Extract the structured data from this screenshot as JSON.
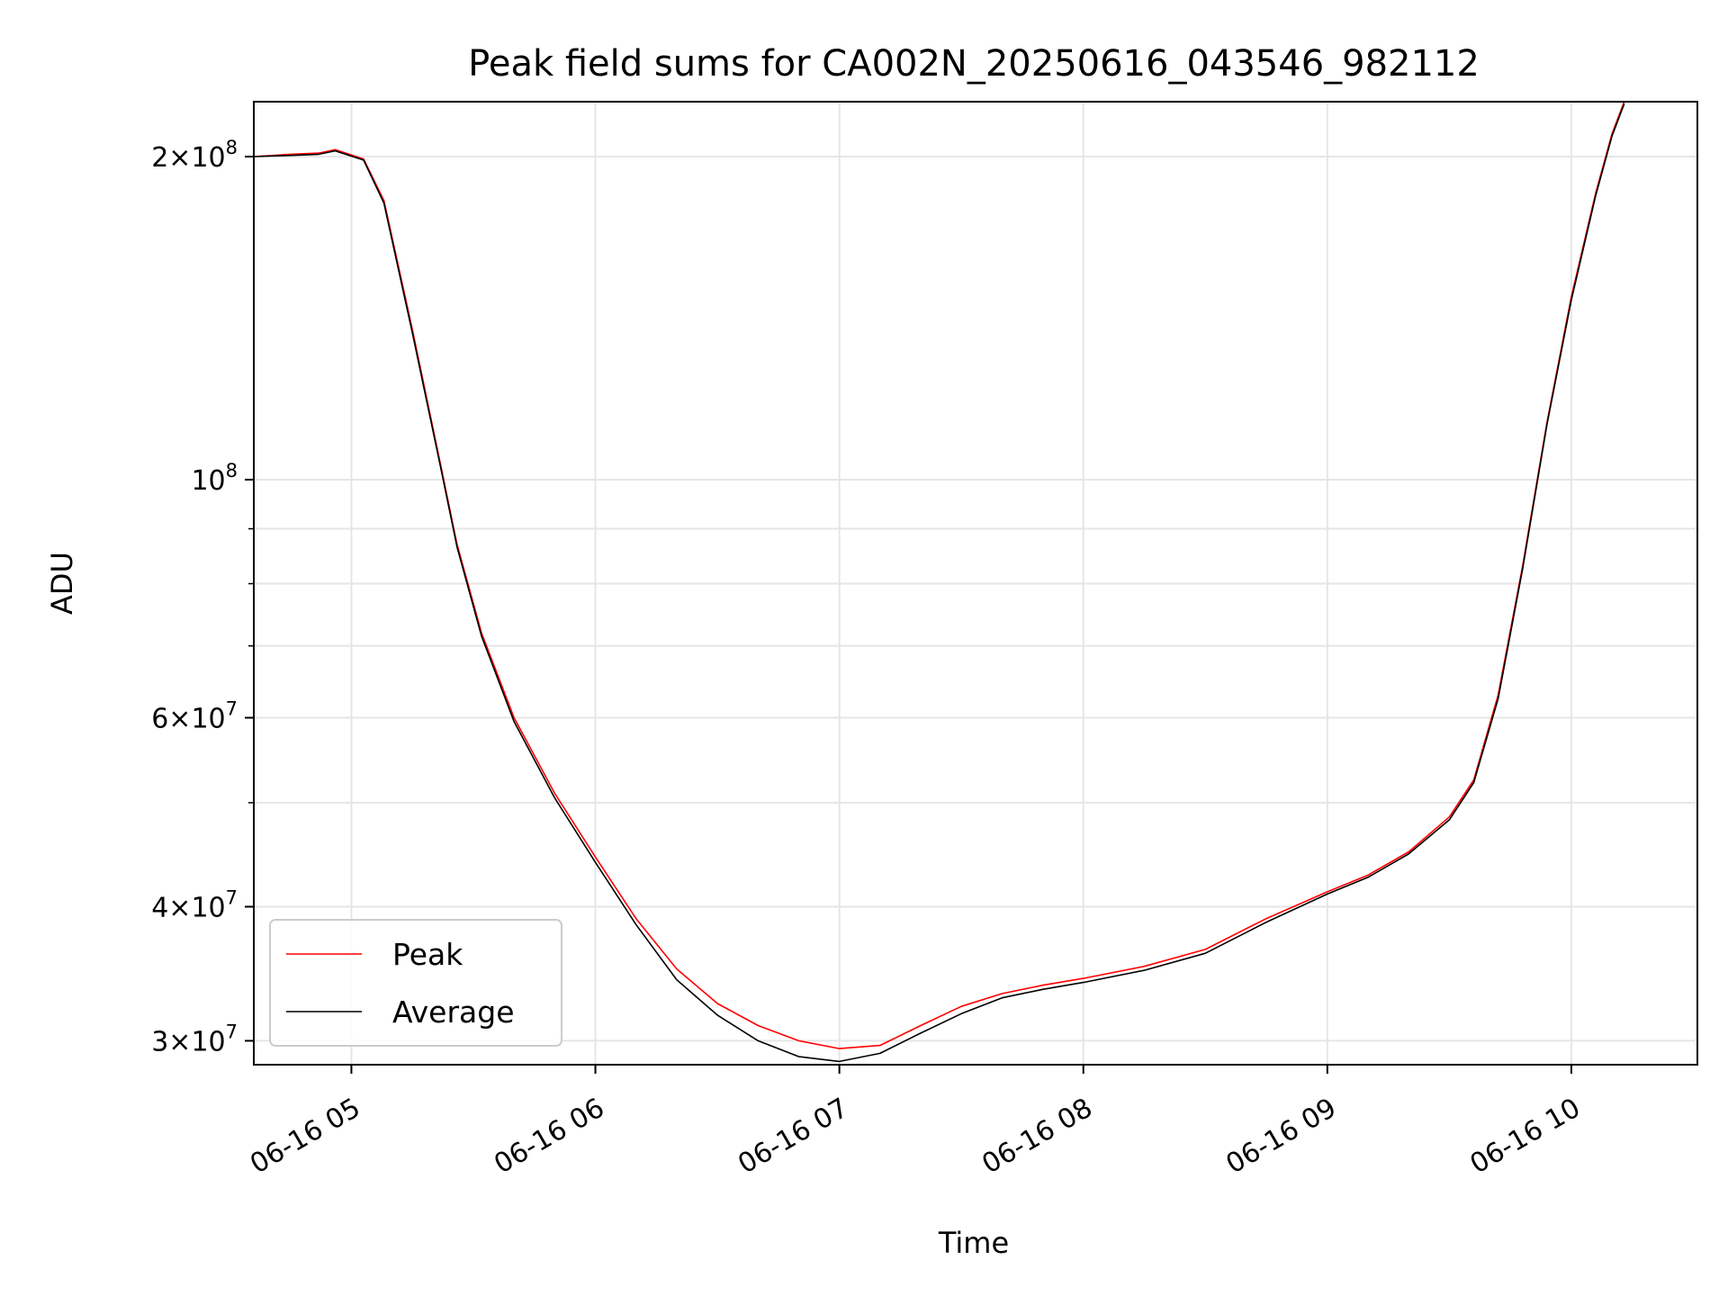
{
  "chart_data": {
    "type": "line",
    "title": "Peak field sums for CA002N_20250616_043546_982112",
    "xlabel": "Time",
    "ylabel": "ADU",
    "yscale": "log",
    "xlim": [
      "2025-06-16T04:36",
      "2025-06-16T10:31"
    ],
    "ylim": [
      28500000,
      225000000
    ],
    "grid": true,
    "legend_position": "lower-left",
    "x_ticks": [
      {
        "value": "2025-06-16T05:00",
        "label": "06-16 05"
      },
      {
        "value": "2025-06-16T06:00",
        "label": "06-16 06"
      },
      {
        "value": "2025-06-16T07:00",
        "label": "06-16 07"
      },
      {
        "value": "2025-06-16T08:00",
        "label": "06-16 08"
      },
      {
        "value": "2025-06-16T09:00",
        "label": "06-16 09"
      },
      {
        "value": "2025-06-16T10:00",
        "label": "06-16 10"
      }
    ],
    "y_ticks": [
      {
        "value": 30000000,
        "mant": "3",
        "exp": "7"
      },
      {
        "value": 40000000,
        "mant": "4",
        "exp": "7"
      },
      {
        "value": 60000000,
        "mant": "6",
        "exp": "7"
      },
      {
        "value": 100000000,
        "mant": "",
        "exp": "8"
      },
      {
        "value": 200000000,
        "mant": "2",
        "exp": "8"
      }
    ],
    "y_minor_ticks": [
      50000000,
      70000000,
      80000000,
      90000000
    ],
    "series": [
      {
        "name": "Peak",
        "color": "#ff0000",
        "x": [
          "2025-06-16T04:36",
          "2025-06-16T04:45",
          "2025-06-16T04:52",
          "2025-06-16T04:56",
          "2025-06-16T05:03",
          "2025-06-16T05:08",
          "2025-06-16T05:15",
          "2025-06-16T05:22",
          "2025-06-16T05:26",
          "2025-06-16T05:32",
          "2025-06-16T05:40",
          "2025-06-16T05:50",
          "2025-06-16T06:00",
          "2025-06-16T06:10",
          "2025-06-16T06:20",
          "2025-06-16T06:30",
          "2025-06-16T06:40",
          "2025-06-16T06:50",
          "2025-06-16T07:00",
          "2025-06-16T07:10",
          "2025-06-16T07:20",
          "2025-06-16T07:30",
          "2025-06-16T07:40",
          "2025-06-16T07:50",
          "2025-06-16T08:00",
          "2025-06-16T08:15",
          "2025-06-16T08:30",
          "2025-06-16T08:45",
          "2025-06-16T09:00",
          "2025-06-16T09:10",
          "2025-06-16T09:20",
          "2025-06-16T09:30",
          "2025-06-16T09:36",
          "2025-06-16T09:42",
          "2025-06-16T09:48",
          "2025-06-16T09:54",
          "2025-06-16T10:00",
          "2025-06-16T10:06",
          "2025-06-16T10:10",
          "2025-06-16T10:13"
        ],
        "y": [
          200000000,
          201000000,
          201500000,
          203000000,
          199000000,
          182000000,
          138000000,
          103000000,
          87000000,
          72000000,
          60000000,
          51000000,
          44500000,
          39000000,
          35000000,
          32500000,
          31000000,
          30000000,
          29500000,
          29700000,
          31000000,
          32300000,
          33200000,
          33800000,
          34300000,
          35200000,
          36500000,
          39000000,
          41300000,
          42800000,
          45000000,
          48500000,
          52500000,
          63000000,
          83000000,
          113000000,
          148000000,
          185000000,
          210000000,
          225000000
        ]
      },
      {
        "name": "Average",
        "color": "#000000",
        "x": [
          "2025-06-16T04:36",
          "2025-06-16T04:45",
          "2025-06-16T04:52",
          "2025-06-16T04:56",
          "2025-06-16T05:03",
          "2025-06-16T05:08",
          "2025-06-16T05:15",
          "2025-06-16T05:22",
          "2025-06-16T05:26",
          "2025-06-16T05:32",
          "2025-06-16T05:40",
          "2025-06-16T05:50",
          "2025-06-16T06:00",
          "2025-06-16T06:10",
          "2025-06-16T06:20",
          "2025-06-16T06:30",
          "2025-06-16T06:40",
          "2025-06-16T06:50",
          "2025-06-16T07:00",
          "2025-06-16T07:10",
          "2025-06-16T07:20",
          "2025-06-16T07:30",
          "2025-06-16T07:40",
          "2025-06-16T07:50",
          "2025-06-16T08:00",
          "2025-06-16T08:15",
          "2025-06-16T08:30",
          "2025-06-16T08:45",
          "2025-06-16T09:00",
          "2025-06-16T09:10",
          "2025-06-16T09:20",
          "2025-06-16T09:30",
          "2025-06-16T09:36",
          "2025-06-16T09:42",
          "2025-06-16T09:48",
          "2025-06-16T09:54",
          "2025-06-16T10:00",
          "2025-06-16T10:06",
          "2025-06-16T10:10",
          "2025-06-16T10:13"
        ],
        "y": [
          200000000,
          200500000,
          201000000,
          202500000,
          198500000,
          181000000,
          137000000,
          102500000,
          86500000,
          71500000,
          59500000,
          50500000,
          44000000,
          38500000,
          34200000,
          31700000,
          30000000,
          29000000,
          28700000,
          29200000,
          30500000,
          31800000,
          32900000,
          33500000,
          34000000,
          34900000,
          36200000,
          38700000,
          41100000,
          42600000,
          44800000,
          48200000,
          52200000,
          62500000,
          82500000,
          112500000,
          147000000,
          184000000,
          209000000,
          224000000
        ]
      }
    ]
  }
}
